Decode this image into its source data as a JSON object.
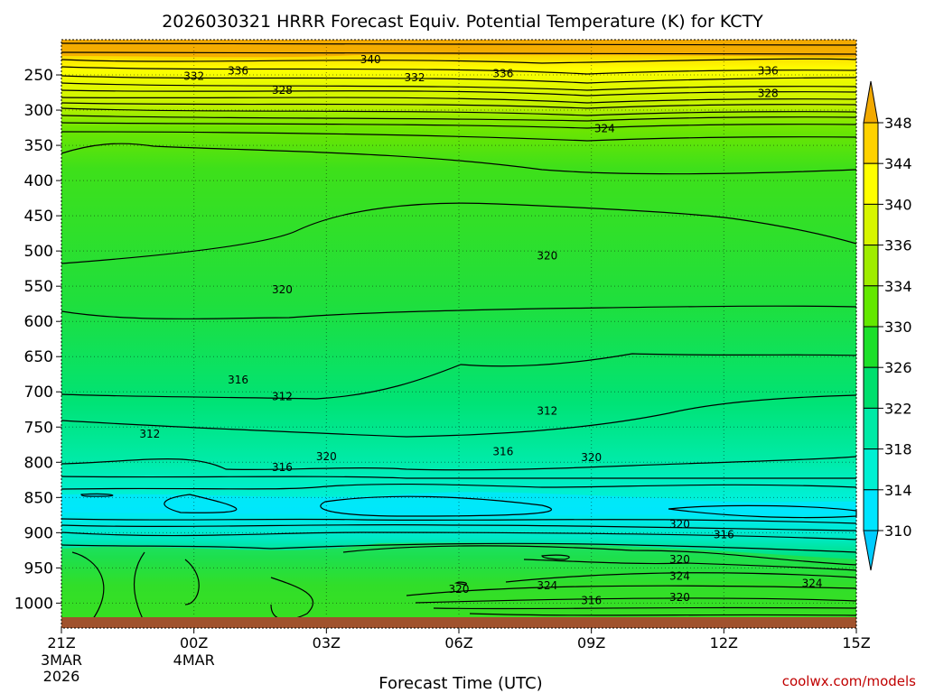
{
  "chart_data": {
    "type": "heatmap",
    "title": "2026030321 HRRR Forecast Equiv. Potential Temperature (K) for KCTY",
    "xlabel": "Forecast Time (UTC)",
    "ylabel": "",
    "x_ticks": [
      {
        "hour": 0,
        "label": "21Z",
        "sub": [
          "3MAR",
          "2026"
        ]
      },
      {
        "hour": 3,
        "label": "00Z",
        "sub": [
          "4MAR"
        ]
      },
      {
        "hour": 6,
        "label": "03Z",
        "sub": []
      },
      {
        "hour": 9,
        "label": "06Z",
        "sub": []
      },
      {
        "hour": 12,
        "label": "09Z",
        "sub": []
      },
      {
        "hour": 15,
        "label": "12Z",
        "sub": []
      },
      {
        "hour": 18,
        "label": "15Z",
        "sub": []
      }
    ],
    "y_ticks": [
      250,
      300,
      350,
      400,
      450,
      500,
      550,
      600,
      650,
      700,
      750,
      800,
      850,
      900,
      950,
      1000
    ],
    "y_range_hpa": [
      1020,
      200
    ],
    "x_range_hours": [
      0,
      18
    ],
    "colorbar": {
      "labels": [
        "348",
        "344",
        "340",
        "336",
        "334",
        "330",
        "326",
        "322",
        "318",
        "314",
        "310"
      ],
      "colors": [
        "#f2a900",
        "#ffd200",
        "#ffff00",
        "#d7f500",
        "#9fec00",
        "#63e800",
        "#1de02a",
        "#00df6d",
        "#00eaa6",
        "#00f0d3",
        "#00e5ff",
        "#00ccff"
      ]
    },
    "contour_labels": [
      {
        "text": "340",
        "hour": 7.0,
        "p": 228
      },
      {
        "text": "336",
        "hour": 4.0,
        "p": 244
      },
      {
        "text": "336",
        "hour": 10.0,
        "p": 248
      },
      {
        "text": "336",
        "hour": 16.0,
        "p": 244
      },
      {
        "text": "332",
        "hour": 3.0,
        "p": 252
      },
      {
        "text": "332",
        "hour": 8.0,
        "p": 254
      },
      {
        "text": "328",
        "hour": 5.0,
        "p": 272
      },
      {
        "text": "328",
        "hour": 16.0,
        "p": 276
      },
      {
        "text": "324",
        "hour": 12.3,
        "p": 326
      },
      {
        "text": "320",
        "hour": 11.0,
        "p": 507
      },
      {
        "text": "320",
        "hour": 5.0,
        "p": 555
      },
      {
        "text": "316",
        "hour": 4.0,
        "p": 683
      },
      {
        "text": "312",
        "hour": 5.0,
        "p": 707
      },
      {
        "text": "312",
        "hour": 11.0,
        "p": 727
      },
      {
        "text": "312",
        "hour": 2.0,
        "p": 760
      },
      {
        "text": "316",
        "hour": 10.0,
        "p": 785
      },
      {
        "text": "320",
        "hour": 6.0,
        "p": 792
      },
      {
        "text": "320",
        "hour": 12.0,
        "p": 793
      },
      {
        "text": "316",
        "hour": 5.0,
        "p": 807
      },
      {
        "text": "320",
        "hour": 14.0,
        "p": 888
      },
      {
        "text": "316",
        "hour": 15.0,
        "p": 903
      },
      {
        "text": "320",
        "hour": 14.0,
        "p": 938
      },
      {
        "text": "324",
        "hour": 14.0,
        "p": 962
      },
      {
        "text": "324",
        "hour": 11.0,
        "p": 975
      },
      {
        "text": "324",
        "hour": 17.0,
        "p": 972
      },
      {
        "text": "320",
        "hour": 9.0,
        "p": 980
      },
      {
        "text": "320",
        "hour": 14.0,
        "p": 992
      },
      {
        "text": "316",
        "hour": 12.0,
        "p": 996
      }
    ],
    "terrain_color": "#a0522d"
  },
  "credit": "coolwx.com/models"
}
